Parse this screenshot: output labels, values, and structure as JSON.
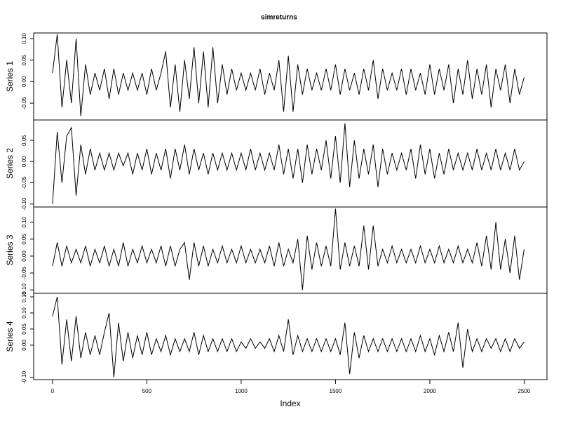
{
  "chart_data": {
    "type": "line",
    "title": "simreturns",
    "xlabel": "Index",
    "xlim": [
      -100,
      2621
    ],
    "xticks": [
      0,
      500,
      1000,
      1500,
      2000,
      2500
    ],
    "x": [
      0,
      25,
      50,
      75,
      100,
      125,
      150,
      175,
      200,
      225,
      250,
      275,
      300,
      325,
      350,
      375,
      400,
      425,
      450,
      475,
      500,
      525,
      550,
      575,
      600,
      625,
      650,
      675,
      700,
      725,
      750,
      775,
      800,
      825,
      850,
      875,
      900,
      925,
      950,
      975,
      1000,
      1025,
      1050,
      1075,
      1100,
      1125,
      1150,
      1175,
      1200,
      1225,
      1250,
      1275,
      1300,
      1325,
      1350,
      1375,
      1400,
      1425,
      1450,
      1475,
      1500,
      1525,
      1550,
      1575,
      1600,
      1625,
      1650,
      1675,
      1700,
      1725,
      1750,
      1775,
      1800,
      1825,
      1850,
      1875,
      1900,
      1925,
      1950,
      1975,
      2000,
      2025,
      2050,
      2075,
      2100,
      2125,
      2150,
      2175,
      2200,
      2225,
      2250,
      2275,
      2300,
      2325,
      2350,
      2375,
      2400,
      2425,
      2450,
      2475,
      2500
    ],
    "panels": [
      {
        "ylabel": "Series 1",
        "color": "#000000",
        "ylim": [
          -0.089,
          0.113
        ],
        "yticks": [
          {
            "value": -0.05,
            "label": "-0.05"
          },
          {
            "value": 0,
            "label": "0.00"
          },
          {
            "value": 0.05,
            "label": "0.05"
          },
          {
            "value": 0.1,
            "label": "0.10"
          }
        ],
        "values": [
          0.02,
          0.11,
          -0.06,
          0.05,
          -0.05,
          0.1,
          -0.08,
          0.04,
          -0.03,
          0.02,
          -0.02,
          0.03,
          -0.04,
          0.03,
          -0.03,
          0.02,
          -0.02,
          0.02,
          -0.02,
          0.02,
          -0.03,
          0.03,
          -0.02,
          0.02,
          0.07,
          -0.06,
          0.04,
          -0.07,
          0.05,
          -0.04,
          0.08,
          -0.05,
          0.07,
          -0.06,
          0.08,
          -0.05,
          0.04,
          -0.03,
          0.03,
          -0.02,
          0.02,
          -0.02,
          0.02,
          -0.02,
          0.03,
          -0.03,
          0.02,
          -0.02,
          0.05,
          -0.07,
          0.06,
          -0.07,
          0.04,
          -0.03,
          0.03,
          -0.02,
          0.02,
          -0.02,
          0.03,
          -0.02,
          0.04,
          -0.03,
          0.03,
          -0.02,
          0.02,
          -0.03,
          0.03,
          -0.02,
          0.05,
          -0.04,
          0.03,
          -0.02,
          0.02,
          -0.02,
          0.03,
          -0.03,
          0.03,
          -0.02,
          0.02,
          -0.03,
          0.04,
          -0.03,
          0.03,
          -0.02,
          0.04,
          -0.05,
          0.03,
          -0.03,
          0.05,
          -0.04,
          0.03,
          -0.03,
          0.04,
          -0.06,
          0.03,
          -0.02,
          0.04,
          -0.05,
          0.03,
          -0.03,
          0.01
        ]
      },
      {
        "ylabel": "Series 2",
        "color": "#000000",
        "ylim": [
          -0.107,
          0.098
        ],
        "yticks": [
          {
            "value": -0.1,
            "label": "-0.10"
          },
          {
            "value": -0.05,
            "label": "-0.05"
          },
          {
            "value": 0,
            "label": "0.00"
          },
          {
            "value": 0.05,
            "label": "0.05"
          }
        ],
        "values": [
          -0.1,
          0.07,
          -0.05,
          0.06,
          0.08,
          -0.08,
          0.04,
          -0.03,
          0.03,
          -0.02,
          0.02,
          -0.02,
          0.02,
          -0.02,
          0.02,
          -0.01,
          0.02,
          -0.03,
          0.02,
          -0.02,
          0.03,
          -0.03,
          0.02,
          -0.02,
          0.03,
          -0.04,
          0.03,
          -0.02,
          0.04,
          -0.03,
          0.03,
          -0.02,
          0.02,
          -0.03,
          0.02,
          -0.02,
          0.02,
          -0.02,
          0.02,
          -0.02,
          0.02,
          -0.02,
          0.03,
          -0.02,
          0.02,
          -0.02,
          0.02,
          -0.02,
          0.04,
          -0.03,
          0.03,
          -0.04,
          0.03,
          -0.05,
          0.04,
          -0.03,
          0.03,
          -0.02,
          0.05,
          -0.04,
          0.06,
          -0.05,
          0.09,
          -0.06,
          0.05,
          -0.04,
          0.03,
          -0.03,
          0.04,
          -0.06,
          0.03,
          -0.03,
          0.02,
          -0.02,
          0.02,
          -0.02,
          0.03,
          -0.04,
          0.04,
          -0.03,
          0.03,
          -0.04,
          0.02,
          -0.03,
          0.03,
          -0.02,
          0.02,
          -0.02,
          0.02,
          -0.02,
          0.03,
          -0.02,
          0.02,
          -0.02,
          0.03,
          -0.02,
          0.02,
          -0.02,
          0.03,
          -0.02,
          0.0
        ]
      },
      {
        "ylabel": "Series 3",
        "color": "#000000",
        "ylim": [
          -0.11,
          0.145
        ],
        "yticks": [
          {
            "value": -0.1,
            "label": "-0.10"
          },
          {
            "value": -0.05,
            "label": "-0.05"
          },
          {
            "value": 0,
            "label": "0.00"
          },
          {
            "value": 0.05,
            "label": "0.05"
          },
          {
            "value": 0.1,
            "label": "0.10"
          }
        ],
        "values": [
          -0.03,
          0.04,
          -0.03,
          0.03,
          -0.02,
          0.02,
          -0.02,
          0.03,
          -0.03,
          0.02,
          -0.02,
          0.03,
          -0.03,
          0.02,
          -0.03,
          0.04,
          -0.03,
          0.02,
          -0.02,
          0.03,
          -0.02,
          0.02,
          -0.02,
          0.03,
          -0.03,
          0.03,
          -0.03,
          0.02,
          0.04,
          -0.07,
          0.04,
          -0.03,
          0.03,
          -0.03,
          0.02,
          -0.02,
          0.03,
          -0.02,
          0.02,
          -0.02,
          0.03,
          -0.02,
          0.02,
          -0.02,
          0.02,
          -0.02,
          0.03,
          -0.03,
          0.04,
          -0.03,
          0.02,
          -0.02,
          0.05,
          -0.1,
          0.06,
          -0.04,
          0.04,
          -0.03,
          0.03,
          -0.03,
          0.14,
          -0.04,
          0.04,
          -0.03,
          0.03,
          -0.03,
          0.09,
          -0.04,
          0.09,
          -0.03,
          0.02,
          -0.02,
          0.03,
          -0.02,
          0.02,
          -0.02,
          0.02,
          -0.02,
          0.03,
          -0.02,
          0.02,
          -0.02,
          0.03,
          -0.02,
          0.02,
          -0.02,
          0.03,
          -0.02,
          0.02,
          -0.02,
          0.04,
          -0.03,
          0.06,
          -0.04,
          0.1,
          -0.04,
          0.05,
          -0.05,
          0.06,
          -0.07,
          0.02
        ]
      },
      {
        "ylabel": "Series 4",
        "color": "#000000",
        "ylim": [
          -0.107,
          0.161
        ],
        "yticks": [
          {
            "value": -0.1,
            "label": "-0.10"
          },
          {
            "value": 0,
            "label": "0.00"
          },
          {
            "value": 0.05,
            "label": "0.05"
          },
          {
            "value": 0.1,
            "label": "0.10"
          },
          {
            "value": 0.15,
            "label": "0.15"
          }
        ],
        "values": [
          0.09,
          0.15,
          -0.06,
          0.08,
          -0.05,
          0.09,
          -0.04,
          0.04,
          -0.03,
          0.03,
          -0.03,
          0.04,
          0.1,
          -0.1,
          0.07,
          -0.05,
          0.04,
          -0.04,
          0.03,
          -0.03,
          0.04,
          -0.03,
          0.02,
          -0.02,
          0.03,
          -0.03,
          0.02,
          -0.02,
          0.02,
          -0.02,
          0.04,
          -0.03,
          0.03,
          -0.02,
          0.02,
          -0.02,
          0.02,
          -0.02,
          0.02,
          -0.02,
          0.01,
          -0.01,
          0.02,
          -0.01,
          0.01,
          -0.01,
          0.02,
          -0.02,
          0.03,
          -0.02,
          0.08,
          -0.03,
          0.03,
          -0.02,
          0.02,
          -0.02,
          0.02,
          -0.02,
          0.02,
          -0.02,
          0.02,
          -0.03,
          0.07,
          -0.09,
          0.04,
          -0.04,
          0.03,
          -0.02,
          0.02,
          -0.02,
          0.02,
          -0.02,
          0.02,
          -0.02,
          0.02,
          -0.02,
          0.02,
          -0.02,
          0.03,
          -0.02,
          0.02,
          -0.03,
          0.03,
          -0.02,
          0.04,
          -0.02,
          0.07,
          -0.07,
          0.05,
          -0.02,
          0.02,
          -0.02,
          0.02,
          -0.01,
          0.02,
          -0.02,
          0.02,
          -0.02,
          0.02,
          -0.01,
          0.01
        ]
      }
    ]
  }
}
